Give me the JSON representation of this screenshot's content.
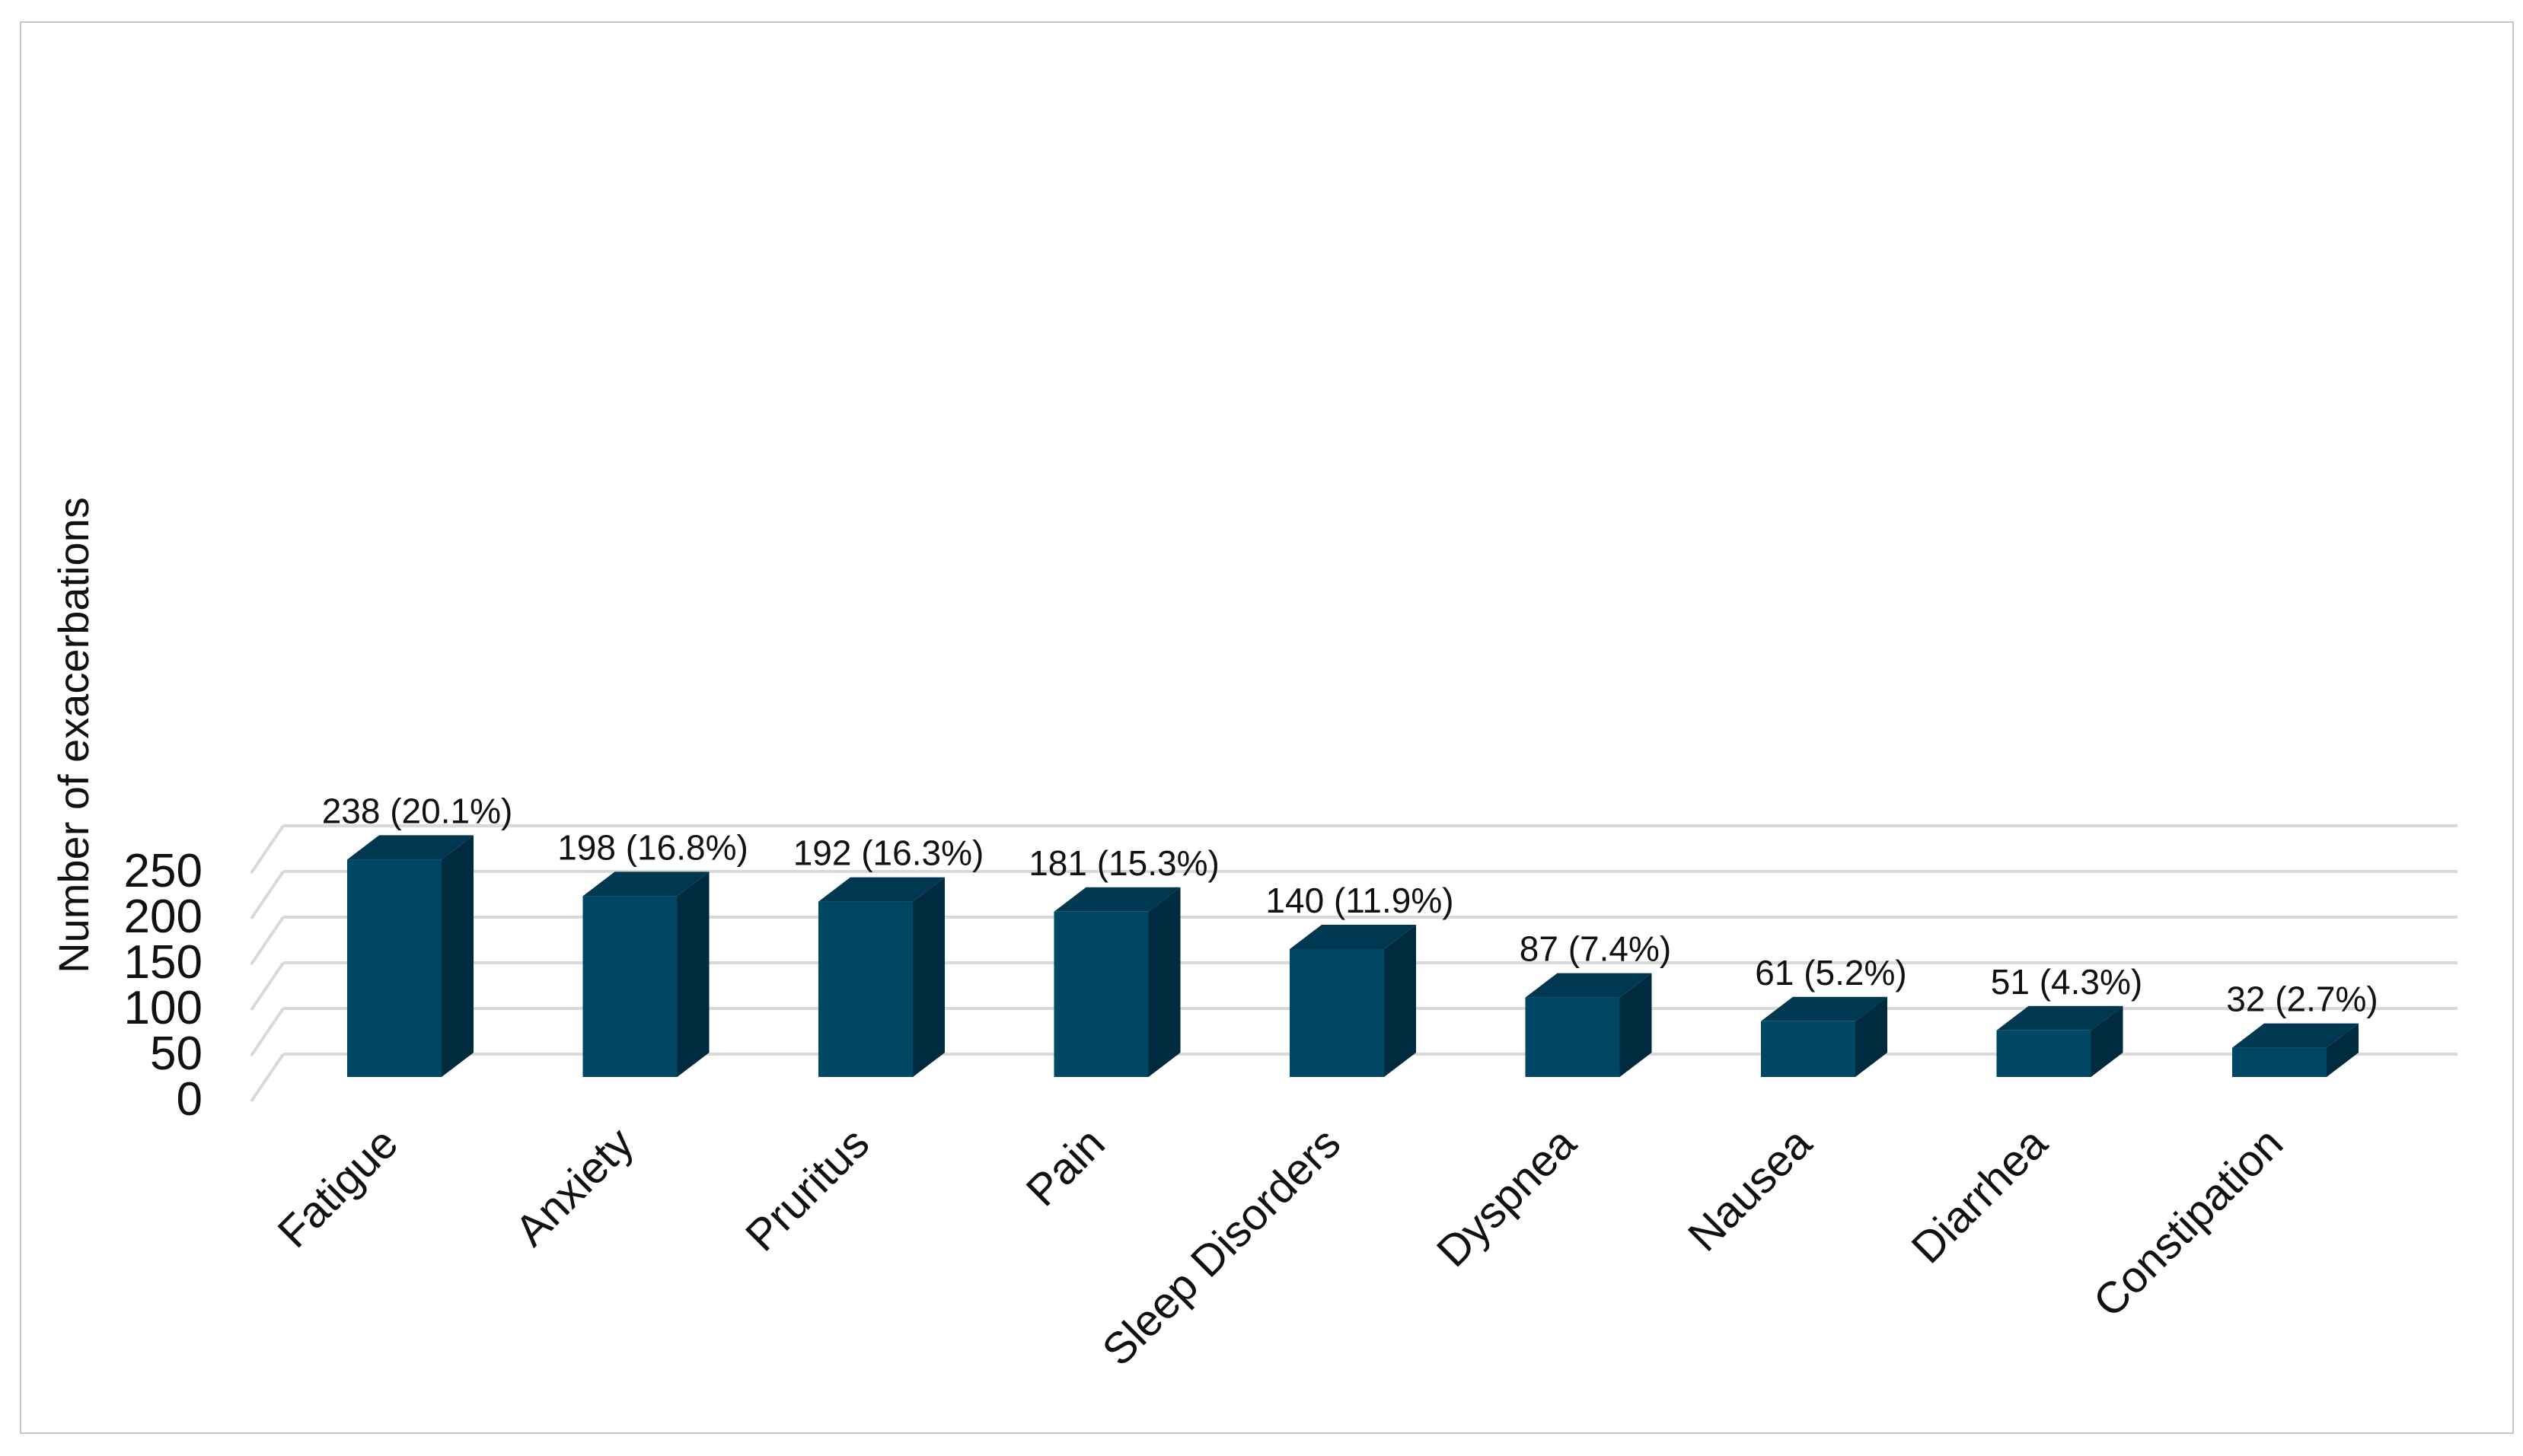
{
  "chart_data": {
    "type": "bar",
    "style": "3d-column",
    "title": "",
    "xlabel": "",
    "ylabel": "Number of exacerbations",
    "ylim": [
      0,
      250
    ],
    "yticks": [
      0,
      50,
      100,
      150,
      200,
      250
    ],
    "grid": true,
    "categories": [
      "Fatigue",
      "Anxiety",
      "Pruritus",
      "Pain",
      "Sleep Disorders",
      "Dyspnea",
      "Nausea",
      "Diarrhea",
      "Constipation"
    ],
    "values": [
      238,
      198,
      192,
      181,
      140,
      87,
      61,
      51,
      32
    ],
    "data_labels": [
      "238 (20.1%)",
      "198 (16.8%)",
      "192 (16.3%)",
      "181 (15.3%)",
      "140 (11.9%)",
      "87 (7.4%)",
      "61 (5.2%)",
      "51 (4.3%)",
      "32 (2.7%)"
    ],
    "colors": {
      "bar_front": "#004665",
      "bar_top": "#003751",
      "bar_side": "#002a3d",
      "grid": "#d9d9d9"
    }
  }
}
